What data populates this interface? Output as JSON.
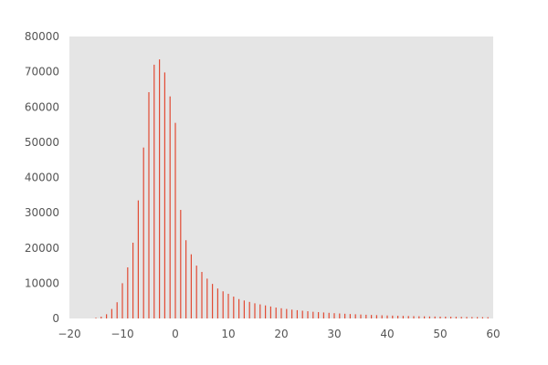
{
  "chart_data": {
    "type": "bar",
    "title": "",
    "xlabel": "",
    "ylabel": "",
    "xlim": [
      -20,
      60
    ],
    "ylim": [
      0,
      80000
    ],
    "grid": false,
    "colors": {
      "plot_background": "#e5e5e5",
      "bar": "#e24a33"
    },
    "x_ticks": [
      -20,
      -10,
      0,
      10,
      20,
      30,
      40,
      50,
      60
    ],
    "y_ticks": [
      0,
      10000,
      20000,
      30000,
      40000,
      50000,
      60000,
      70000,
      80000
    ],
    "x_tick_labels": [
      "−20",
      "−10",
      "0",
      "10",
      "20",
      "30",
      "40",
      "50",
      "60"
    ],
    "y_tick_labels": [
      "0",
      "10000",
      "20000",
      "30000",
      "40000",
      "50000",
      "60000",
      "70000",
      "80000"
    ],
    "x": [
      -15,
      -14,
      -13,
      -12,
      -11,
      -10,
      -9,
      -8,
      -7,
      -6,
      -5,
      -4,
      -3,
      -2,
      -1,
      0,
      1,
      2,
      3,
      4,
      5,
      6,
      7,
      8,
      9,
      10,
      11,
      12,
      13,
      14,
      15,
      16,
      17,
      18,
      19,
      20,
      21,
      22,
      23,
      24,
      25,
      26,
      27,
      28,
      29,
      30,
      31,
      32,
      33,
      34,
      35,
      36,
      37,
      38,
      39,
      40,
      41,
      42,
      43,
      44,
      45,
      46,
      47,
      48,
      49,
      50,
      51,
      52,
      53,
      54,
      55,
      56,
      57,
      58,
      59
    ],
    "values": [
      200,
      500,
      1200,
      2700,
      4600,
      10000,
      14500,
      21500,
      33500,
      48500,
      64200,
      72000,
      73500,
      69800,
      63000,
      55500,
      30800,
      22200,
      18200,
      15000,
      13200,
      11300,
      9800,
      8500,
      7700,
      7000,
      6200,
      5500,
      5100,
      4700,
      4300,
      4000,
      3700,
      3400,
      3100,
      2900,
      2700,
      2500,
      2350,
      2200,
      2050,
      1900,
      1800,
      1700,
      1600,
      1500,
      1420,
      1340,
      1260,
      1190,
      1120,
      1060,
      1000,
      950,
      900,
      850,
      810,
      770,
      730,
      700,
      660,
      630,
      600,
      570,
      550,
      520,
      500,
      480,
      460,
      440,
      420,
      400,
      390,
      370,
      360
    ]
  }
}
